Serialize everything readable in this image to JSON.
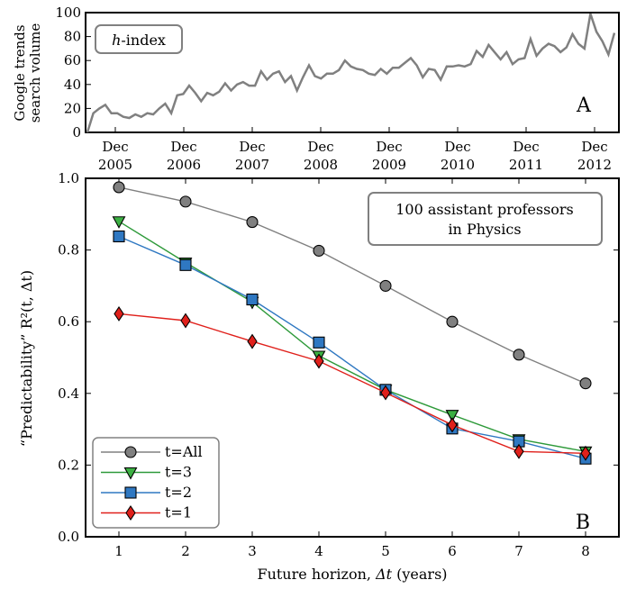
{
  "chart_data": [
    {
      "panel": "A",
      "type": "line",
      "annotation": "h-index",
      "ylabel": [
        "Google trends",
        "search volume"
      ],
      "ylim": [
        0,
        100
      ],
      "yticks": [
        0,
        20,
        40,
        60,
        80,
        100
      ],
      "xtick_labels": [
        [
          "Dec",
          "2005"
        ],
        [
          "Dec",
          "2006"
        ],
        [
          "Dec",
          "2007"
        ],
        [
          "Dec",
          "2008"
        ],
        [
          "Dec",
          "2009"
        ],
        [
          "Dec",
          "2010"
        ],
        [
          "Dec",
          "2011"
        ],
        [
          "Dec",
          "2012"
        ]
      ],
      "series": [
        {
          "color": "#808080",
          "values": [
            0,
            16,
            20,
            23,
            16,
            16,
            13,
            12,
            15,
            13,
            16,
            15,
            20,
            24,
            16,
            31,
            32,
            39,
            33,
            26,
            33,
            31,
            34,
            41,
            35,
            40,
            42,
            39,
            39,
            51,
            44,
            49,
            51,
            42,
            47,
            35,
            46,
            56,
            47,
            45,
            49,
            49,
            52,
            60,
            55,
            53,
            52,
            49,
            48,
            53,
            49,
            54,
            54,
            58,
            62,
            56,
            46,
            53,
            52,
            44,
            55,
            55,
            56,
            55,
            57,
            68,
            63,
            73,
            67,
            61,
            67,
            57,
            61,
            62,
            78,
            64,
            70,
            74,
            72,
            67,
            71,
            82,
            74,
            70,
            99,
            84,
            76,
            65,
            83
          ]
        }
      ]
    },
    {
      "panel": "B",
      "type": "line",
      "annotation": "100 assistant professors in Physics",
      "xlabel": "Future horizon, Δt (years)",
      "ylabel": "“Predictability” R²(t, Δt)",
      "xlim": [
        0.5,
        8.5
      ],
      "ylim": [
        0.0,
        1.0
      ],
      "x": [
        1,
        2,
        3,
        4,
        5,
        6,
        7,
        8
      ],
      "yticks": [
        "0.0",
        "0.2",
        "0.4",
        "0.6",
        "0.8",
        "1.0"
      ],
      "legend_position": "lower-left",
      "series": [
        {
          "name": "t=All",
          "marker": "circle",
          "fill": "#808080",
          "line": "#808080",
          "values": [
            0.975,
            0.935,
            0.878,
            0.798,
            0.7,
            0.6,
            0.508,
            0.428
          ]
        },
        {
          "name": "t=3",
          "marker": "triangle-down",
          "fill": "#3cb043",
          "line": "#2e9a3a",
          "values": [
            0.88,
            0.765,
            0.655,
            0.505,
            0.41,
            0.34,
            0.272,
            0.238
          ]
        },
        {
          "name": "t=2",
          "marker": "square",
          "fill": "#2f78c2",
          "line": "#2f78c2",
          "values": [
            0.838,
            0.758,
            0.662,
            0.542,
            0.41,
            0.302,
            0.266,
            0.218
          ]
        },
        {
          "name": "t=1",
          "marker": "diamond",
          "fill": "#e0201b",
          "line": "#e0201b",
          "values": [
            0.622,
            0.603,
            0.545,
            0.49,
            0.402,
            0.312,
            0.238,
            0.233
          ]
        }
      ]
    }
  ],
  "labels": {
    "panel_a": "A",
    "panel_b": "B"
  }
}
